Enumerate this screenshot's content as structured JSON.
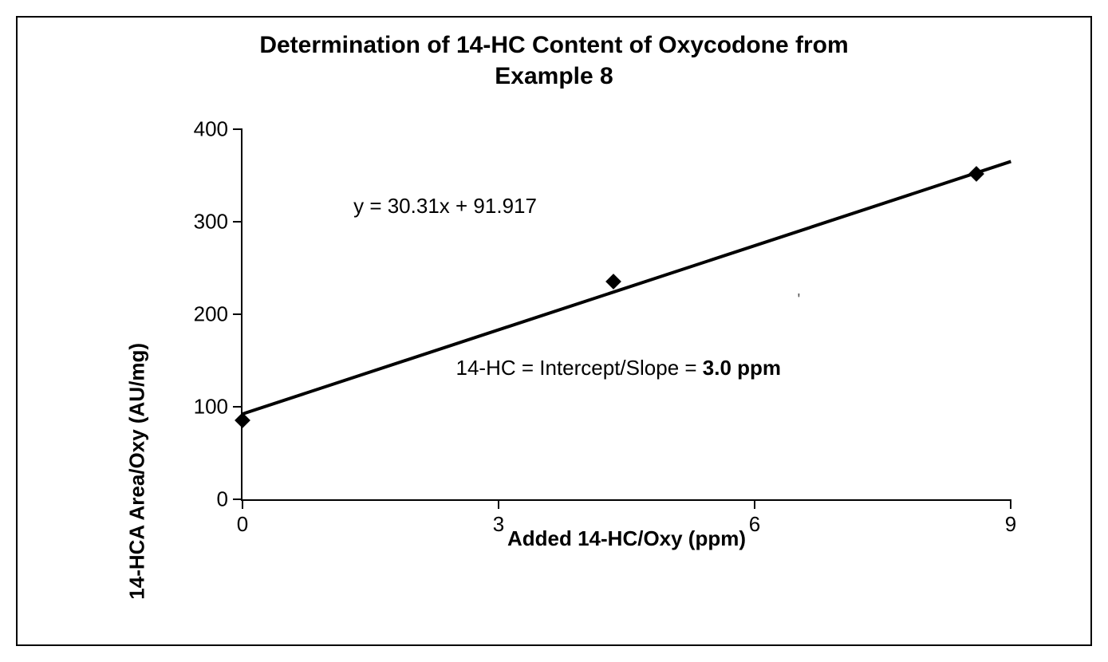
{
  "chart": {
    "type": "scatter-with-trendline",
    "title_line1": "Determination of 14-HC Content of Oxycodone from",
    "title_line2": "Example 8",
    "title_fontsize": 30,
    "xlabel": "Added 14-HC/Oxy (ppm)",
    "ylabel": "14-HCA Area/Oxy (AU/mg)",
    "label_fontsize": 26,
    "tick_fontsize": 26,
    "xlim": [
      0,
      9
    ],
    "ylim": [
      0,
      400
    ],
    "x_ticks": [
      0,
      3,
      6,
      9
    ],
    "y_ticks": [
      0,
      100,
      200,
      300,
      400
    ],
    "background_color": "#ffffff",
    "border_color": "#000000",
    "axis_color": "#000000",
    "marker_style": "diamond",
    "marker_color": "#000000",
    "marker_size": 14,
    "line_color": "#000000",
    "line_width": 4,
    "data_points": [
      {
        "x": 0.0,
        "y": 85
      },
      {
        "x": 4.35,
        "y": 235
      },
      {
        "x": 8.6,
        "y": 352
      }
    ],
    "trendline": {
      "slope": 30.31,
      "intercept": 91.917,
      "x_start": 0.0,
      "x_end": 9.0
    },
    "equation_text": "y = 30.31x + 91.917",
    "result_prefix": "14-HC = Intercept/Slope = ",
    "result_value": "3.0 ppm",
    "stray_mark": "'"
  }
}
